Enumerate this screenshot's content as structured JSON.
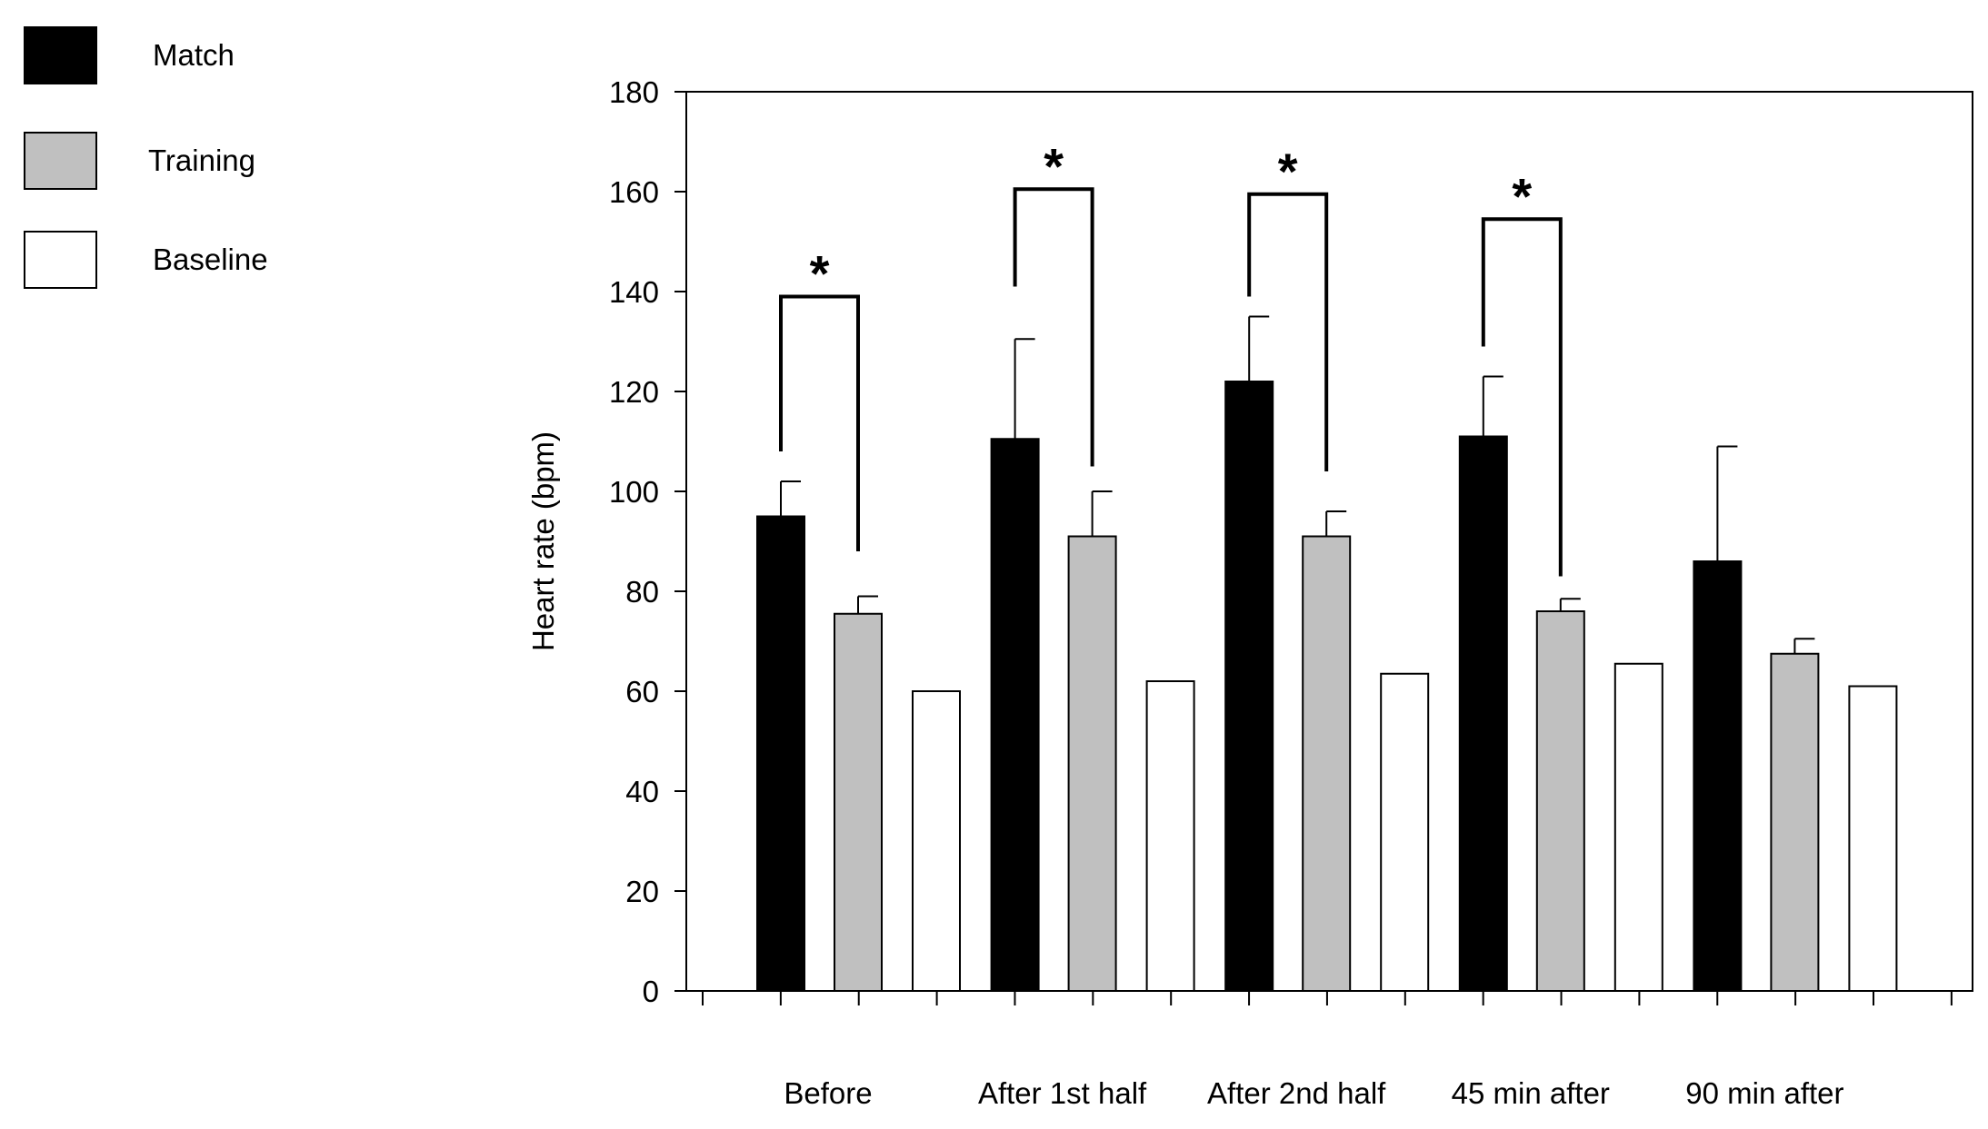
{
  "chart_data": {
    "type": "bar",
    "title": "",
    "xlabel": "",
    "ylabel": "Heart rate (bpm)",
    "ylim": [
      0,
      180
    ],
    "yticks": [
      0,
      20,
      40,
      60,
      80,
      100,
      120,
      140,
      160,
      180
    ],
    "categories": [
      "Before",
      "After 1st half",
      "After 2nd half",
      "45 min after",
      "90 min after"
    ],
    "series": [
      {
        "name": "Match",
        "color": "#000000",
        "values": [
          95,
          110.5,
          122,
          111,
          86
        ],
        "errors": [
          7,
          20,
          13,
          12,
          23
        ]
      },
      {
        "name": "Training",
        "color": "#c0c0c0",
        "values": [
          75.5,
          91,
          91,
          76,
          67.5
        ],
        "errors": [
          3.5,
          9,
          5,
          2.5,
          3
        ]
      },
      {
        "name": "Baseline",
        "color": "#ffffff",
        "values": [
          60,
          62,
          63.5,
          65.5,
          61
        ],
        "errors": [
          null,
          null,
          null,
          null,
          null
        ]
      }
    ],
    "significance": [
      {
        "category_index": 0,
        "label": "*",
        "left_start": 108,
        "right_start": 88,
        "bracket_y": 139
      },
      {
        "category_index": 1,
        "label": "*",
        "left_start": 141,
        "right_start": 105,
        "bracket_y": 160.5
      },
      {
        "category_index": 2,
        "label": "*",
        "left_start": 139,
        "right_start": 104,
        "bracket_y": 159.5
      },
      {
        "category_index": 3,
        "label": "*",
        "left_start": 129,
        "right_start": 83,
        "bracket_y": 154.5
      }
    ],
    "legend": {
      "placement": "top-left",
      "items": [
        {
          "label": "Match",
          "color": "#000000"
        },
        {
          "label": "Training",
          "color": "#c0c0c0"
        },
        {
          "label": "Baseline",
          "color": "#ffffff"
        }
      ]
    }
  }
}
